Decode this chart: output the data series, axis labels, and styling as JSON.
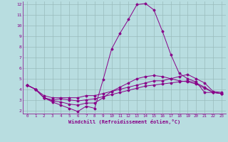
{
  "xlabel": "Windchill (Refroidissement éolien,°C)",
  "xlim": [
    -0.5,
    23.5
  ],
  "ylim": [
    1.7,
    12.3
  ],
  "yticks": [
    2,
    3,
    4,
    5,
    6,
    7,
    8,
    9,
    10,
    11,
    12
  ],
  "xticks": [
    0,
    1,
    2,
    3,
    4,
    5,
    6,
    7,
    8,
    9,
    10,
    11,
    12,
    13,
    14,
    15,
    16,
    17,
    18,
    19,
    20,
    21,
    22,
    23
  ],
  "bg_color": "#b8dde0",
  "line_color": "#880088",
  "grid_color": "#99bbbb",
  "lines": [
    {
      "x": [
        0,
        1,
        2,
        3,
        4,
        5,
        6,
        7,
        8,
        9,
        10,
        11,
        12,
        13,
        14,
        15,
        16,
        17,
        18,
        19,
        20,
        21,
        22,
        23
      ],
      "y": [
        4.4,
        4.0,
        3.2,
        2.8,
        2.5,
        2.2,
        1.9,
        2.4,
        2.2,
        4.9,
        7.8,
        9.3,
        10.6,
        12.0,
        12.1,
        11.5,
        9.5,
        7.3,
        5.5,
        5.0,
        4.7,
        3.7,
        3.7,
        3.6
      ]
    },
    {
      "x": [
        0,
        1,
        2,
        3,
        4,
        5,
        6,
        7,
        8,
        9,
        10,
        11,
        12,
        13,
        14,
        15,
        16,
        17,
        18,
        19,
        20,
        21,
        22,
        23
      ],
      "y": [
        4.4,
        4.0,
        3.4,
        3.2,
        3.2,
        3.2,
        3.2,
        3.4,
        3.4,
        3.6,
        3.8,
        4.0,
        4.2,
        4.4,
        4.6,
        4.8,
        4.8,
        5.0,
        5.2,
        5.4,
        5.0,
        4.6,
        3.8,
        3.7
      ]
    },
    {
      "x": [
        0,
        1,
        2,
        3,
        4,
        5,
        6,
        7,
        8,
        9,
        10,
        11,
        12,
        13,
        14,
        15,
        16,
        17,
        18,
        19,
        20,
        21,
        22,
        23
      ],
      "y": [
        4.4,
        4.0,
        3.2,
        3.0,
        3.1,
        3.0,
        2.9,
        3.0,
        3.1,
        3.3,
        3.5,
        3.7,
        3.9,
        4.1,
        4.3,
        4.4,
        4.5,
        4.6,
        4.7,
        4.8,
        4.6,
        4.2,
        3.7,
        3.6
      ]
    },
    {
      "x": [
        0,
        1,
        2,
        3,
        4,
        5,
        6,
        7,
        8,
        9,
        10,
        11,
        12,
        13,
        14,
        15,
        16,
        17,
        18,
        19,
        20,
        21,
        22,
        23
      ],
      "y": [
        4.4,
        4.0,
        3.2,
        2.9,
        2.8,
        2.6,
        2.5,
        2.7,
        2.7,
        3.2,
        3.8,
        4.2,
        4.6,
        5.0,
        5.2,
        5.3,
        5.2,
        5.0,
        4.8,
        4.7,
        4.5,
        4.1,
        3.7,
        3.6
      ]
    }
  ]
}
